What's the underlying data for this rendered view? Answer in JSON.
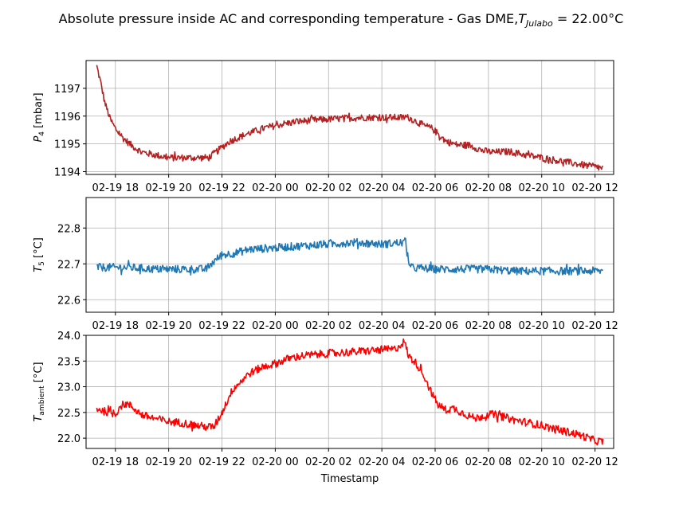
{
  "figure": {
    "title_prefix": "Absolute pressure inside AC and corresponding temperature - Gas DME,",
    "title_sym": "T",
    "title_sub": "Julabo",
    "title_suffix": " = 22.00°C",
    "xlabel": "Timestamp"
  },
  "chart_data": [
    {
      "type": "line",
      "title": "",
      "xlabel": "",
      "ylabel": {
        "sym": "P",
        "sub": "4",
        "unit": " [mbar]"
      },
      "color": "#b22222",
      "noise": 0.03,
      "x_tick_labels": [
        "02-19 18",
        "02-19 20",
        "02-19 22",
        "02-20 00",
        "02-20 02",
        "02-20 04",
        "02-20 06",
        "02-20 08",
        "02-20 10",
        "02-20 12"
      ],
      "x_tick_hours": [
        18,
        20,
        22,
        24,
        26,
        28,
        30,
        32,
        34,
        36
      ],
      "xlim_hours": [
        16.9,
        36.7
      ],
      "ylim": [
        1193.9,
        1198.0
      ],
      "yticks": [
        1194,
        1195,
        1196,
        1197
      ],
      "grid": true,
      "series": [
        {
          "x_hours": [
            17.3,
            17.45,
            17.6,
            17.8,
            18.0,
            18.3,
            18.6,
            19.0,
            19.4,
            20.0,
            20.6,
            21.2,
            21.5,
            21.9,
            22.3,
            23.0,
            23.6,
            24.2,
            24.8,
            25.5,
            26.2,
            26.8,
            27.4,
            28.0,
            28.6,
            29.0,
            29.4,
            29.6,
            29.9,
            30.4,
            30.8,
            31.3,
            31.8,
            32.2,
            32.8,
            33.4,
            34.0,
            34.6,
            35.2,
            35.8,
            36.3
          ],
          "values": [
            1197.8,
            1197.2,
            1196.5,
            1195.9,
            1195.55,
            1195.2,
            1194.95,
            1194.7,
            1194.62,
            1194.5,
            1194.5,
            1194.5,
            1194.5,
            1194.8,
            1195.1,
            1195.38,
            1195.57,
            1195.7,
            1195.8,
            1195.86,
            1195.9,
            1195.93,
            1195.95,
            1195.95,
            1195.95,
            1195.95,
            1195.75,
            1195.65,
            1195.55,
            1195.1,
            1194.97,
            1194.95,
            1194.75,
            1194.7,
            1194.72,
            1194.6,
            1194.5,
            1194.4,
            1194.3,
            1194.2,
            1194.12
          ]
        }
      ]
    },
    {
      "type": "line",
      "title": "",
      "xlabel": "",
      "ylabel": {
        "sym": "T",
        "sub": "5",
        "unit": " [°C]"
      },
      "color": "#1f77b4",
      "noise": 0.035,
      "x_tick_labels": [
        "02-19 18",
        "02-19 20",
        "02-19 22",
        "02-20 00",
        "02-20 02",
        "02-20 04",
        "02-20 06",
        "02-20 08",
        "02-20 10",
        "02-20 12"
      ],
      "x_tick_hours": [
        18,
        20,
        22,
        24,
        26,
        28,
        30,
        32,
        34,
        36
      ],
      "xlim_hours": [
        16.9,
        36.7
      ],
      "ylim": [
        22.565,
        22.885
      ],
      "yticks": [
        22.6,
        22.7,
        22.8
      ],
      "grid": true,
      "series": [
        {
          "x_hours": [
            17.3,
            18.5,
            19.5,
            20.5,
            21.4,
            21.6,
            22.0,
            22.5,
            23.0,
            24.0,
            25.0,
            26.0,
            27.0,
            28.0,
            28.9,
            29.05,
            30.0,
            31.0,
            32.0,
            33.0,
            34.0,
            35.0,
            36.3
          ],
          "values": [
            22.69,
            22.69,
            22.685,
            22.685,
            22.685,
            22.7,
            22.725,
            22.73,
            22.74,
            22.745,
            22.75,
            22.755,
            22.76,
            22.755,
            22.76,
            22.69,
            22.685,
            22.685,
            22.685,
            22.68,
            22.68,
            22.68,
            22.68
          ]
        }
      ]
    },
    {
      "type": "line",
      "title": "",
      "xlabel": "Timestamp",
      "ylabel": {
        "sym": "T",
        "sub": "ambient",
        "unit": " [°C]"
      },
      "color": "#ff0000",
      "noise": 0.035,
      "x_tick_labels": [
        "02-19 18",
        "02-19 20",
        "02-19 22",
        "02-20 00",
        "02-20 02",
        "02-20 04",
        "02-20 06",
        "02-20 08",
        "02-20 10",
        "02-20 12"
      ],
      "x_tick_hours": [
        18,
        20,
        22,
        24,
        26,
        28,
        30,
        32,
        34,
        36
      ],
      "xlim_hours": [
        16.9,
        36.7
      ],
      "ylim": [
        21.8,
        24.0
      ],
      "yticks": [
        22.0,
        22.5,
        23.0,
        23.5,
        24.0
      ],
      "grid": true,
      "series": [
        {
          "x_hours": [
            17.3,
            17.6,
            18.0,
            18.2,
            18.4,
            18.6,
            19.0,
            19.5,
            20.0,
            20.5,
            21.0,
            21.4,
            21.7,
            22.0,
            22.4,
            23.0,
            23.5,
            24.0,
            24.5,
            25.0,
            26.0,
            27.0,
            27.5,
            28.0,
            28.5,
            28.85,
            29.0,
            29.3,
            29.6,
            29.8,
            30.1,
            30.4,
            30.7,
            31.0,
            31.5,
            32.0,
            32.3,
            33.0,
            33.5,
            34.0,
            34.5,
            35.0,
            35.5,
            36.0,
            36.3
          ],
          "values": [
            22.58,
            22.52,
            22.47,
            22.63,
            22.67,
            22.62,
            22.45,
            22.38,
            22.32,
            22.3,
            22.25,
            22.22,
            22.22,
            22.5,
            22.95,
            23.25,
            23.38,
            23.45,
            23.55,
            23.6,
            23.65,
            23.68,
            23.7,
            23.72,
            23.73,
            23.88,
            23.6,
            23.45,
            23.2,
            22.95,
            22.65,
            22.55,
            22.58,
            22.5,
            22.38,
            22.47,
            22.45,
            22.35,
            22.3,
            22.25,
            22.17,
            22.12,
            22.05,
            21.95,
            21.93
          ]
        }
      ]
    }
  ]
}
